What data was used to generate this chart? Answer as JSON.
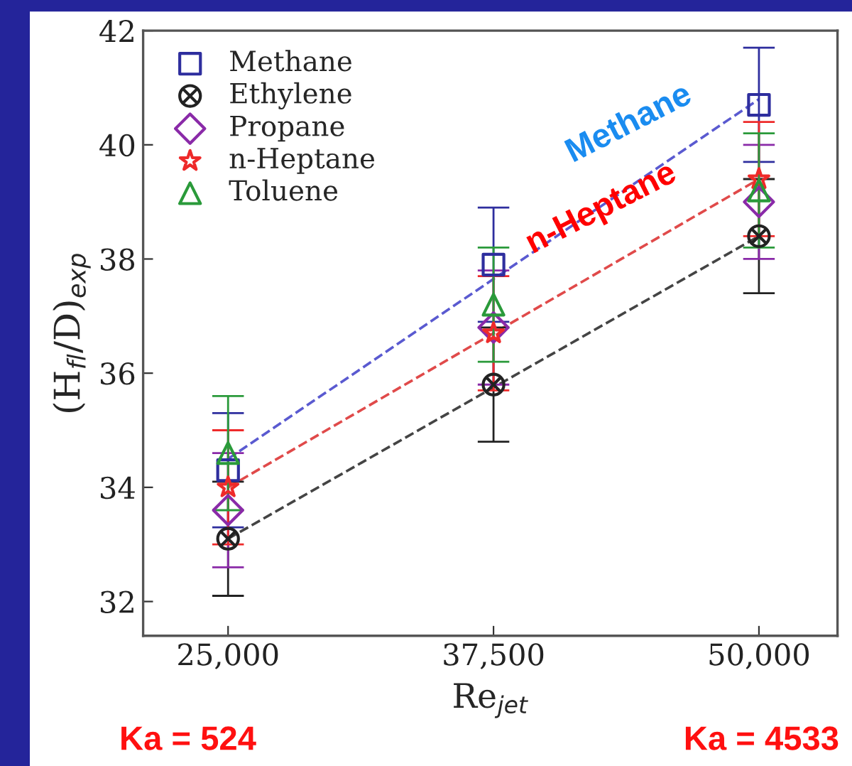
{
  "chart_data": {
    "type": "scatter",
    "xlabel": "Re$_{jet}$",
    "ylabel": "(H$_{fl}$/D)$_{exp}$",
    "x": [
      25000,
      37500,
      50000
    ],
    "xlim": [
      21000,
      53700
    ],
    "ylim": [
      31.4,
      42
    ],
    "xticks": [
      {
        "value": 25000,
        "label": "25,000"
      },
      {
        "value": 37500,
        "label": "37,500"
      },
      {
        "value": 50000,
        "label": "50,000"
      }
    ],
    "yticks": [
      32,
      34,
      36,
      38,
      40,
      42
    ],
    "grid": false,
    "legend": "top left",
    "series": [
      {
        "name": "Methane",
        "color": "#2e2e9e",
        "marker": "square",
        "values": [
          34.3,
          37.9,
          40.7
        ],
        "errors": [
          1.0,
          1.0,
          1.0
        ]
      },
      {
        "name": "Ethylene",
        "color": "#222222",
        "marker": "cross",
        "values": [
          33.1,
          35.8,
          38.4
        ],
        "errors": [
          1.0,
          1.0,
          1.0
        ]
      },
      {
        "name": "Propane",
        "color": "#8a2aa8",
        "marker": "diamond",
        "values": [
          33.6,
          36.8,
          39.0
        ],
        "errors": [
          1.0,
          1.0,
          1.0
        ]
      },
      {
        "name": "n-Heptane",
        "color": "#ee2a2a",
        "marker": "star",
        "values": [
          34.0,
          36.7,
          39.4
        ],
        "errors": [
          1.0,
          1.0,
          1.0
        ]
      },
      {
        "name": "Toluene",
        "color": "#2a9a3a",
        "marker": "triangle",
        "values": [
          34.6,
          37.2,
          39.2
        ],
        "errors": [
          1.0,
          1.0,
          1.0
        ]
      },
      {
        "type": "line",
        "color": "#5a5ad0",
        "line_style": "dashed",
        "values": [
          34.5,
          37.65,
          40.8
        ]
      },
      {
        "type": "line",
        "color": "#e04a4a",
        "line_style": "dashed",
        "values": [
          34.0,
          36.7,
          39.4
        ]
      },
      {
        "type": "line",
        "color": "#444444",
        "line_style": "dashed",
        "values": [
          33.1,
          35.75,
          38.4
        ]
      }
    ],
    "annotations": [
      "Methane",
      "n-Heptane",
      "Ka = 524",
      "Ka = 4533"
    ]
  }
}
